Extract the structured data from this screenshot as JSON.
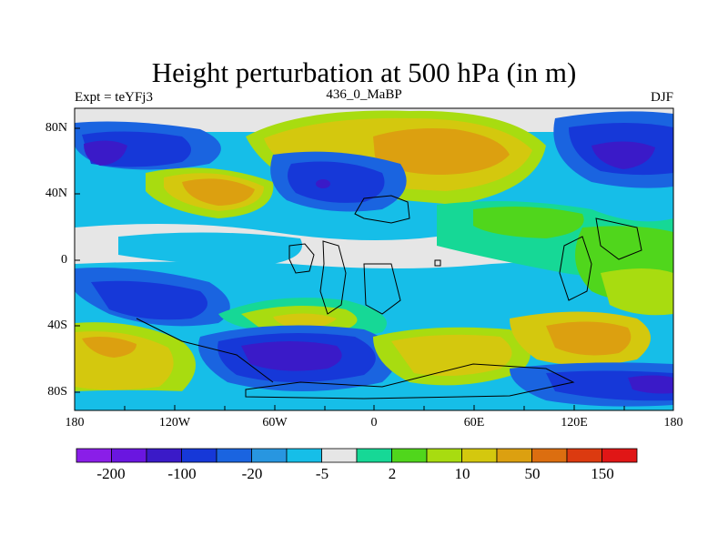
{
  "title": "Height perturbation at 500 hPa (in m)",
  "subtitle_left": "Expt = teYFj3",
  "subtitle_center": "436_0_MaBP",
  "subtitle_right": "DJF",
  "lat_labels": [
    "80N",
    "40N",
    "0",
    "40S",
    "80S"
  ],
  "lon_labels": [
    "180",
    "120W",
    "60W",
    "0",
    "60E",
    "120E",
    "180"
  ],
  "colorbar": {
    "colors": [
      "#8a1ee8",
      "#6a16e0",
      "#3a1ac8",
      "#1638d8",
      "#1a64e0",
      "#2896e0",
      "#16bee8",
      "#e6e6e6",
      "#16d896",
      "#50d61c",
      "#a8dc10",
      "#d4c80e",
      "#dca010",
      "#dc6e10",
      "#dc3a10",
      "#e01616"
    ],
    "labels": [
      "-200",
      "-100",
      "-20",
      "-5",
      "2",
      "10",
      "50",
      "150"
    ]
  }
}
